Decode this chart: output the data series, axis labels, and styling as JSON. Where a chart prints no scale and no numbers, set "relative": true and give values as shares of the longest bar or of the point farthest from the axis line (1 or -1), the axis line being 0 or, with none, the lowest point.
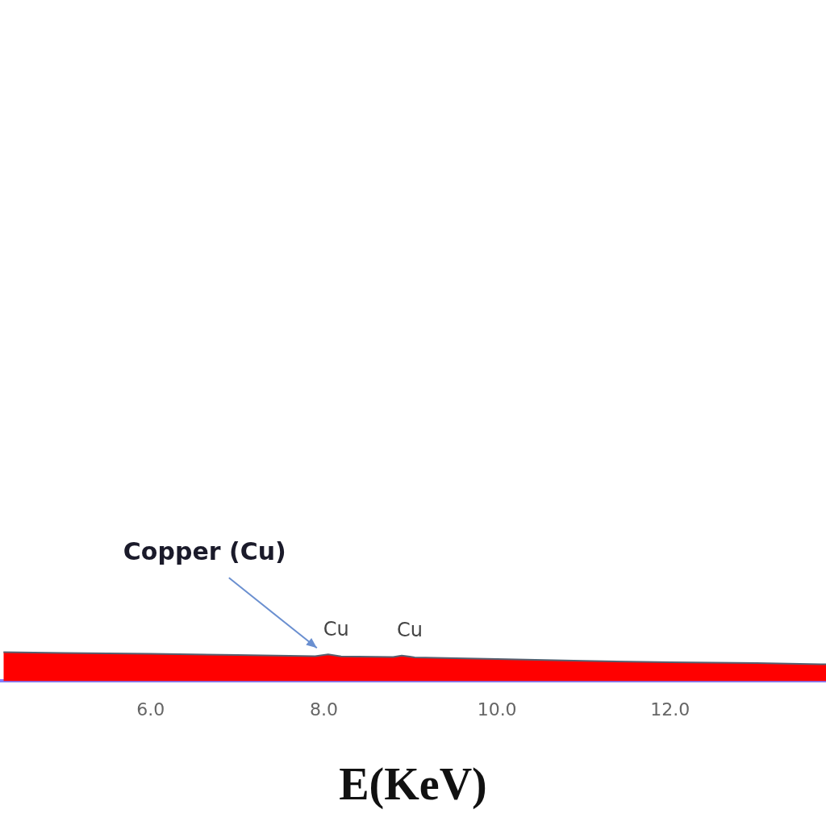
{
  "chart_data": {
    "type": "area",
    "relative": true,
    "xlabel": "E(KeV)",
    "x": [
      4.3,
      5,
      6,
      7,
      7.9,
      8.05,
      8.2,
      8.8,
      8.9,
      9.05,
      10,
      11,
      12,
      13,
      13.8
    ],
    "series": [
      {
        "color": "#ff0000",
        "values": [
          1,
          0.97,
          0.94,
          0.9,
          0.86,
          0.92,
          0.85,
          0.83,
          0.88,
          0.82,
          0.76,
          0.7,
          0.65,
          0.62,
          0.58
        ]
      }
    ],
    "xlim": [
      4.26,
      13.8
    ],
    "xticks": [
      {
        "value": 6,
        "label": "6.0"
      },
      {
        "value": 8,
        "label": "8.0"
      },
      {
        "value": 10,
        "label": "10.0"
      },
      {
        "value": 12,
        "label": "12.0"
      }
    ],
    "annotations": [
      "Copper (Cu)",
      {
        "text": "Cu",
        "x": 8.05,
        "y": 0.92
      },
      {
        "text": "Cu",
        "x": 8.9,
        "y": 0.88
      }
    ],
    "grid": false,
    "legend": false
  }
}
